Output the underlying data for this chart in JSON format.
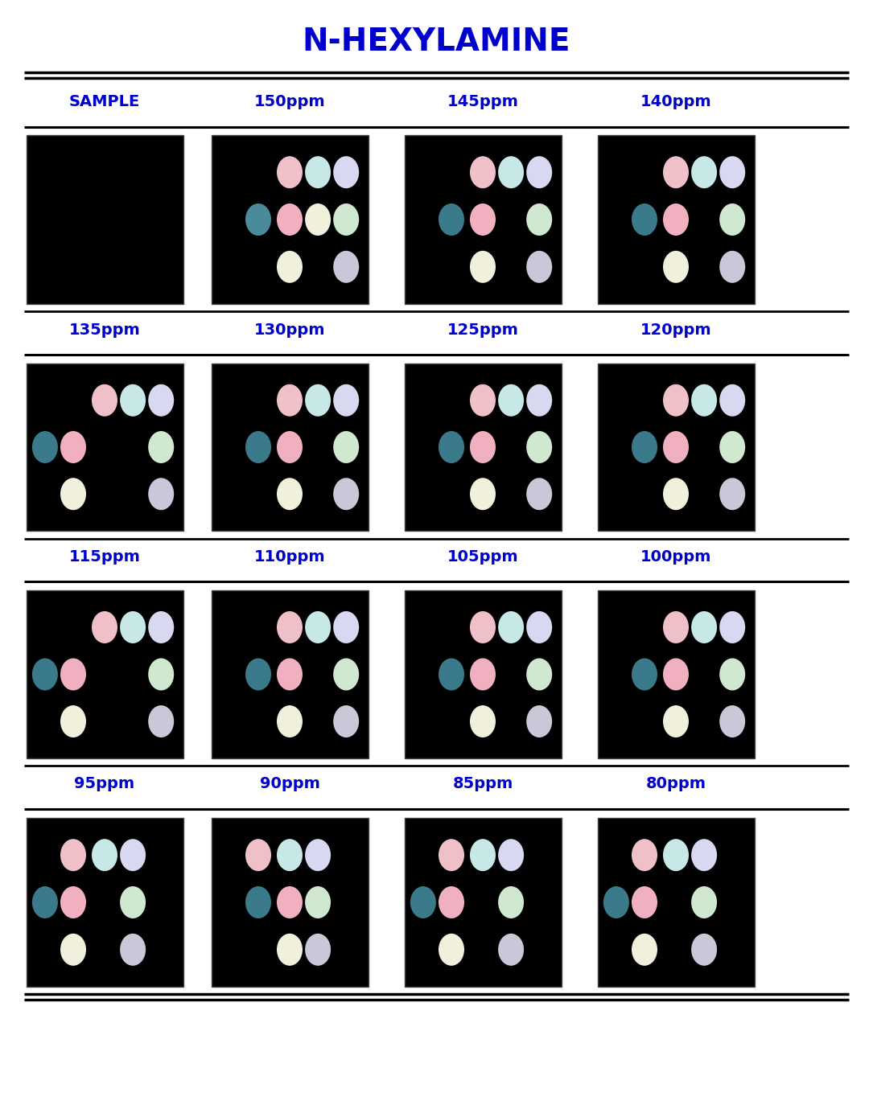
{
  "title": "N-HEXYLAMINE",
  "title_color": "#0000CC",
  "bg_color": "#FFFFFF",
  "label_fontsize": 14,
  "label_color": "#0000CC",
  "title_fontsize": 28,
  "rows": [
    {
      "labels": [
        "SAMPLE",
        "150ppm",
        "145ppm",
        "140ppm"
      ],
      "dot_configs": [
        [],
        [
          {
            "col": 2,
            "row": 2,
            "color": "#F0C0C8"
          },
          {
            "col": 3,
            "row": 2,
            "color": "#C8E8E8"
          },
          {
            "col": 4,
            "row": 2,
            "color": "#D8D8F0"
          },
          {
            "col": 1,
            "row": 1,
            "color": "#4A8A9A"
          },
          {
            "col": 2,
            "row": 1,
            "color": "#F0B0C0"
          },
          {
            "col": 3,
            "row": 1,
            "color": "#F0F0DC"
          },
          {
            "col": 4,
            "row": 1,
            "color": "#D0E8D0"
          },
          {
            "col": 2,
            "row": 0,
            "color": "#F0F0DC"
          },
          {
            "col": 4,
            "row": 0,
            "color": "#C8C8D8"
          }
        ],
        [
          {
            "col": 2,
            "row": 2,
            "color": "#F0C0C8"
          },
          {
            "col": 3,
            "row": 2,
            "color": "#C8E8E8"
          },
          {
            "col": 4,
            "row": 2,
            "color": "#D8D8F0"
          },
          {
            "col": 1,
            "row": 1,
            "color": "#3A7A8A"
          },
          {
            "col": 2,
            "row": 1,
            "color": "#F0B0C0"
          },
          {
            "col": 4,
            "row": 1,
            "color": "#D0E8D0"
          },
          {
            "col": 2,
            "row": 0,
            "color": "#F0F0DC"
          },
          {
            "col": 4,
            "row": 0,
            "color": "#C8C8D8"
          }
        ],
        [
          {
            "col": 2,
            "row": 2,
            "color": "#F0C0C8"
          },
          {
            "col": 3,
            "row": 2,
            "color": "#C8E8E8"
          },
          {
            "col": 4,
            "row": 2,
            "color": "#D8D8F0"
          },
          {
            "col": 1,
            "row": 1,
            "color": "#3A7A8A"
          },
          {
            "col": 2,
            "row": 1,
            "color": "#F0B0C0"
          },
          {
            "col": 4,
            "row": 1,
            "color": "#D0E8D0"
          },
          {
            "col": 2,
            "row": 0,
            "color": "#F0F0DC"
          },
          {
            "col": 4,
            "row": 0,
            "color": "#C8C8D8"
          }
        ]
      ]
    },
    {
      "labels": [
        "135ppm",
        "130ppm",
        "125ppm",
        "120ppm"
      ],
      "dot_configs": [
        [
          {
            "col": 2,
            "row": 2,
            "color": "#F0C0C8"
          },
          {
            "col": 3,
            "row": 2,
            "color": "#C8E8E8"
          },
          {
            "col": 4,
            "row": 2,
            "color": "#D8D8F0"
          },
          {
            "col": 0,
            "row": 1,
            "color": "#3A7A8A"
          },
          {
            "col": 1,
            "row": 1,
            "color": "#F0B0C0"
          },
          {
            "col": 4,
            "row": 1,
            "color": "#D0E8D0"
          },
          {
            "col": 1,
            "row": 0,
            "color": "#F0F0DC"
          },
          {
            "col": 4,
            "row": 0,
            "color": "#C8C8D8"
          }
        ],
        [
          {
            "col": 2,
            "row": 2,
            "color": "#F0C0C8"
          },
          {
            "col": 3,
            "row": 2,
            "color": "#C8E8E8"
          },
          {
            "col": 4,
            "row": 2,
            "color": "#D8D8F0"
          },
          {
            "col": 1,
            "row": 1,
            "color": "#3A7A8A"
          },
          {
            "col": 2,
            "row": 1,
            "color": "#F0B0C0"
          },
          {
            "col": 4,
            "row": 1,
            "color": "#D0E8D0"
          },
          {
            "col": 2,
            "row": 0,
            "color": "#F0F0DC"
          },
          {
            "col": 4,
            "row": 0,
            "color": "#C8C8D8"
          }
        ],
        [
          {
            "col": 2,
            "row": 2,
            "color": "#F0C0C8"
          },
          {
            "col": 3,
            "row": 2,
            "color": "#C8E8E8"
          },
          {
            "col": 4,
            "row": 2,
            "color": "#D8D8F0"
          },
          {
            "col": 1,
            "row": 1,
            "color": "#3A7A8A"
          },
          {
            "col": 2,
            "row": 1,
            "color": "#F0B0C0"
          },
          {
            "col": 4,
            "row": 1,
            "color": "#D0E8D0"
          },
          {
            "col": 2,
            "row": 0,
            "color": "#F0F0DC"
          },
          {
            "col": 4,
            "row": 0,
            "color": "#C8C8D8"
          }
        ],
        [
          {
            "col": 2,
            "row": 2,
            "color": "#F0C0C8"
          },
          {
            "col": 3,
            "row": 2,
            "color": "#C8E8E8"
          },
          {
            "col": 4,
            "row": 2,
            "color": "#D8D8F0"
          },
          {
            "col": 1,
            "row": 1,
            "color": "#3A7A8A"
          },
          {
            "col": 2,
            "row": 1,
            "color": "#F0B0C0"
          },
          {
            "col": 4,
            "row": 1,
            "color": "#D0E8D0"
          },
          {
            "col": 2,
            "row": 0,
            "color": "#F0F0DC"
          },
          {
            "col": 4,
            "row": 0,
            "color": "#C8C8D8"
          }
        ]
      ]
    },
    {
      "labels": [
        "115ppm",
        "110ppm",
        "105ppm",
        "100ppm"
      ],
      "dot_configs": [
        [
          {
            "col": 2,
            "row": 2,
            "color": "#F0C0C8"
          },
          {
            "col": 3,
            "row": 2,
            "color": "#C8E8E8"
          },
          {
            "col": 4,
            "row": 2,
            "color": "#D8D8F0"
          },
          {
            "col": 0,
            "row": 1,
            "color": "#3A7A8A"
          },
          {
            "col": 1,
            "row": 1,
            "color": "#F0B0C0"
          },
          {
            "col": 4,
            "row": 1,
            "color": "#D0E8D0"
          },
          {
            "col": 1,
            "row": 0,
            "color": "#F0F0DC"
          },
          {
            "col": 4,
            "row": 0,
            "color": "#C8C8D8"
          }
        ],
        [
          {
            "col": 2,
            "row": 2,
            "color": "#F0C0C8"
          },
          {
            "col": 3,
            "row": 2,
            "color": "#C8E8E8"
          },
          {
            "col": 4,
            "row": 2,
            "color": "#D8D8F0"
          },
          {
            "col": 1,
            "row": 1,
            "color": "#3A7A8A"
          },
          {
            "col": 2,
            "row": 1,
            "color": "#F0B0C0"
          },
          {
            "col": 4,
            "row": 1,
            "color": "#D0E8D0"
          },
          {
            "col": 2,
            "row": 0,
            "color": "#F0F0DC"
          },
          {
            "col": 4,
            "row": 0,
            "color": "#C8C8D8"
          }
        ],
        [
          {
            "col": 2,
            "row": 2,
            "color": "#F0C0C8"
          },
          {
            "col": 3,
            "row": 2,
            "color": "#C8E8E8"
          },
          {
            "col": 4,
            "row": 2,
            "color": "#D8D8F0"
          },
          {
            "col": 1,
            "row": 1,
            "color": "#3A7A8A"
          },
          {
            "col": 2,
            "row": 1,
            "color": "#F0B0C0"
          },
          {
            "col": 4,
            "row": 1,
            "color": "#D0E8D0"
          },
          {
            "col": 2,
            "row": 0,
            "color": "#F0F0DC"
          },
          {
            "col": 4,
            "row": 0,
            "color": "#C8C8D8"
          }
        ],
        [
          {
            "col": 2,
            "row": 2,
            "color": "#F0C0C8"
          },
          {
            "col": 3,
            "row": 2,
            "color": "#C8E8E8"
          },
          {
            "col": 4,
            "row": 2,
            "color": "#D8D8F0"
          },
          {
            "col": 1,
            "row": 1,
            "color": "#3A7A8A"
          },
          {
            "col": 2,
            "row": 1,
            "color": "#F0B0C0"
          },
          {
            "col": 4,
            "row": 1,
            "color": "#D0E8D0"
          },
          {
            "col": 2,
            "row": 0,
            "color": "#F0F0DC"
          },
          {
            "col": 4,
            "row": 0,
            "color": "#C8C8D8"
          }
        ]
      ]
    },
    {
      "labels": [
        "95ppm",
        "90ppm",
        "85ppm",
        "80ppm"
      ],
      "dot_configs": [
        [
          {
            "col": 1,
            "row": 2,
            "color": "#F0C0C8"
          },
          {
            "col": 2,
            "row": 2,
            "color": "#C8E8E8"
          },
          {
            "col": 3,
            "row": 2,
            "color": "#D8D8F0"
          },
          {
            "col": 0,
            "row": 1,
            "color": "#3A7A8A"
          },
          {
            "col": 1,
            "row": 1,
            "color": "#F0B0C0"
          },
          {
            "col": 3,
            "row": 1,
            "color": "#D0E8D0"
          },
          {
            "col": 1,
            "row": 0,
            "color": "#F0F0DC"
          },
          {
            "col": 3,
            "row": 0,
            "color": "#C8C8D8"
          }
        ],
        [
          {
            "col": 1,
            "row": 2,
            "color": "#F0C0C8"
          },
          {
            "col": 2,
            "row": 2,
            "color": "#C8E8E8"
          },
          {
            "col": 3,
            "row": 2,
            "color": "#D8D8F0"
          },
          {
            "col": 1,
            "row": 1,
            "color": "#3A7A8A"
          },
          {
            "col": 2,
            "row": 1,
            "color": "#F0B0C0"
          },
          {
            "col": 3,
            "row": 1,
            "color": "#D0E8D0"
          },
          {
            "col": 2,
            "row": 0,
            "color": "#F0F0DC"
          },
          {
            "col": 3,
            "row": 0,
            "color": "#C8C8D8"
          }
        ],
        [
          {
            "col": 1,
            "row": 2,
            "color": "#F0C0C8"
          },
          {
            "col": 2,
            "row": 2,
            "color": "#C8E8E8"
          },
          {
            "col": 3,
            "row": 2,
            "color": "#D8D8F0"
          },
          {
            "col": 0,
            "row": 1,
            "color": "#3A7A8A"
          },
          {
            "col": 1,
            "row": 1,
            "color": "#F0B0C0"
          },
          {
            "col": 3,
            "row": 1,
            "color": "#D0E8D0"
          },
          {
            "col": 1,
            "row": 0,
            "color": "#F0F0DC"
          },
          {
            "col": 3,
            "row": 0,
            "color": "#C8C8D8"
          }
        ],
        [
          {
            "col": 1,
            "row": 2,
            "color": "#F0C0C8"
          },
          {
            "col": 2,
            "row": 2,
            "color": "#C8E8E8"
          },
          {
            "col": 3,
            "row": 2,
            "color": "#D8D8F0"
          },
          {
            "col": 0,
            "row": 1,
            "color": "#3A7A8A"
          },
          {
            "col": 1,
            "row": 1,
            "color": "#F0B0C0"
          },
          {
            "col": 3,
            "row": 1,
            "color": "#D0E8D0"
          },
          {
            "col": 1,
            "row": 0,
            "color": "#F0F0DC"
          },
          {
            "col": 3,
            "row": 0,
            "color": "#C8C8D8"
          }
        ]
      ]
    }
  ]
}
